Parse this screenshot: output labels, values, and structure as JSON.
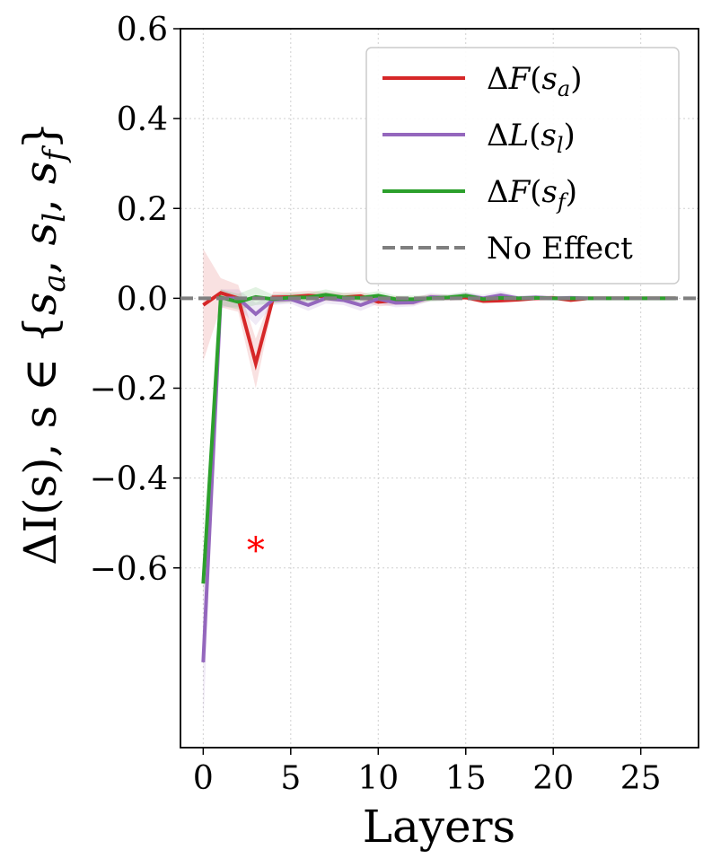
{
  "chart_data": {
    "type": "line",
    "xlabel": "Layers",
    "ylabel": "ΔI(s),  s ∈ {s_a, s_l, s_f}",
    "xlim": [
      -1.3,
      28.3
    ],
    "ylim": [
      -1.0,
      0.6
    ],
    "xticks": [
      0,
      5,
      10,
      15,
      20,
      25
    ],
    "yticks": [
      0.6,
      0.4,
      0.2,
      0.0,
      -0.2,
      -0.4,
      -0.6
    ],
    "ytick_labels": [
      "0.6",
      "0.4",
      "0.2",
      "0.0",
      "−0.2",
      "−0.4",
      "−0.6"
    ],
    "grid": true,
    "legend_position": "top-right",
    "x": [
      0,
      1,
      2,
      3,
      4,
      5,
      6,
      7,
      8,
      9,
      10,
      11,
      12,
      13,
      14,
      15,
      16,
      17,
      18,
      19,
      20,
      21,
      22,
      23,
      24,
      25,
      26,
      27
    ],
    "series": [
      {
        "name": "ΔF(s_a)",
        "color": "#d62728",
        "values": [
          -0.015,
          0.012,
          0.0,
          -0.145,
          0.002,
          0.003,
          0.006,
          0.004,
          0.002,
          0.005,
          -0.008,
          -0.005,
          -0.006,
          0.002,
          0.001,
          0.002,
          -0.006,
          -0.005,
          -0.003,
          0.0,
          0.001,
          -0.004,
          0.0,
          0.0,
          0.0,
          0.0,
          0.0,
          0.0
        ],
        "lower": [
          -0.14,
          -0.02,
          -0.03,
          -0.2,
          -0.01,
          -0.008,
          -0.005,
          -0.006,
          -0.008,
          -0.005,
          -0.018,
          -0.015,
          -0.015,
          -0.005,
          -0.005,
          -0.004,
          -0.012,
          -0.01,
          -0.008,
          -0.005,
          -0.004,
          -0.008,
          -0.004,
          -0.003,
          -0.003,
          -0.003,
          -0.003,
          -0.003
        ],
        "upper": [
          0.11,
          0.045,
          0.03,
          -0.09,
          0.015,
          0.014,
          0.017,
          0.014,
          0.012,
          0.015,
          0.002,
          0.005,
          0.003,
          0.009,
          0.007,
          0.008,
          0.0,
          0.0,
          0.002,
          0.005,
          0.006,
          0.0,
          0.004,
          0.003,
          0.003,
          0.003,
          0.003,
          0.003
        ]
      },
      {
        "name": "ΔL(s_l)",
        "color": "#9467bd",
        "values": [
          -0.81,
          0.0,
          0.0,
          -0.035,
          -0.003,
          -0.002,
          -0.015,
          0.0,
          -0.004,
          -0.015,
          -0.001,
          -0.01,
          -0.009,
          0.003,
          0.001,
          0.006,
          0.0,
          0.007,
          0.0,
          0.002,
          0.0,
          0.001,
          0.0,
          0.0,
          0.0,
          0.0,
          0.0,
          0.0
        ],
        "lower": [
          -0.95,
          -0.02,
          -0.02,
          -0.06,
          -0.015,
          -0.012,
          -0.028,
          -0.012,
          -0.015,
          -0.028,
          -0.012,
          -0.02,
          -0.018,
          -0.006,
          -0.006,
          -0.002,
          -0.008,
          -0.002,
          -0.006,
          -0.004,
          -0.005,
          -0.004,
          -0.004,
          -0.003,
          -0.003,
          -0.003,
          -0.003,
          -0.003
        ],
        "upper": [
          -0.67,
          0.02,
          0.02,
          -0.01,
          0.009,
          0.008,
          -0.002,
          0.012,
          0.007,
          -0.002,
          0.01,
          0.0,
          0.0,
          0.012,
          0.008,
          0.014,
          0.008,
          0.016,
          0.006,
          0.008,
          0.005,
          0.006,
          0.004,
          0.003,
          0.003,
          0.003,
          0.003,
          0.003
        ]
      },
      {
        "name": "ΔF(s_f)",
        "color": "#2ca02c",
        "values": [
          -0.635,
          0.002,
          -0.008,
          0.003,
          -0.002,
          0.002,
          0.002,
          0.008,
          0.002,
          0.001,
          0.006,
          -0.002,
          -0.002,
          0.0,
          0.002,
          0.006,
          -0.002,
          0.001,
          0.0,
          0.001,
          0.0,
          0.0,
          0.0,
          0.0,
          0.0,
          0.0,
          0.0,
          0.0
        ],
        "lower": [
          -0.67,
          -0.015,
          -0.025,
          -0.015,
          -0.012,
          -0.008,
          -0.008,
          -0.004,
          -0.008,
          -0.008,
          -0.004,
          -0.01,
          -0.01,
          -0.007,
          -0.005,
          -0.002,
          -0.008,
          -0.005,
          -0.005,
          -0.004,
          -0.004,
          -0.003,
          -0.003,
          -0.003,
          -0.003,
          -0.003,
          -0.003,
          -0.003
        ],
        "upper": [
          -0.6,
          0.02,
          0.01,
          0.025,
          0.008,
          0.012,
          0.012,
          0.02,
          0.012,
          0.01,
          0.016,
          0.006,
          0.006,
          0.007,
          0.009,
          0.014,
          0.004,
          0.007,
          0.005,
          0.006,
          0.004,
          0.003,
          0.003,
          0.003,
          0.003,
          0.003,
          0.003,
          0.003
        ]
      }
    ],
    "baseline": {
      "name": "No Effect",
      "value": 0.0,
      "color": "#7f7f7f"
    },
    "annotations": [
      {
        "text": "*",
        "x": 3,
        "y": -0.545,
        "color": "#ff0000"
      }
    ]
  }
}
